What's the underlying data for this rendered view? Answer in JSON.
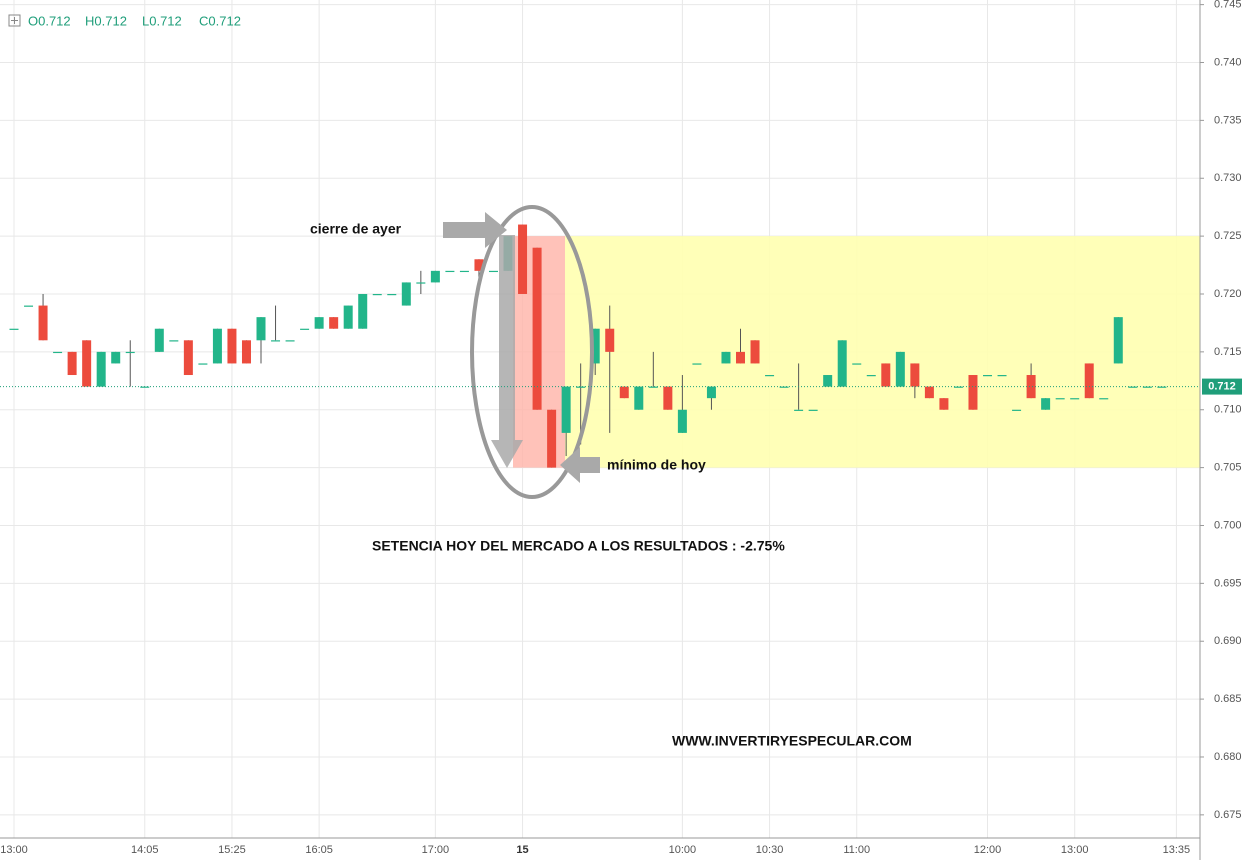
{
  "chart_data": {
    "type": "candlestick",
    "ohlc_header": [
      "O0.712",
      "H0.712",
      "L0.712",
      "C0.712"
    ],
    "categories": [
      "13:00",
      null,
      null,
      null,
      null,
      null,
      null,
      null,
      null,
      "14:05",
      null,
      null,
      null,
      null,
      null,
      "15:25",
      null,
      null,
      null,
      null,
      null,
      "16:05",
      null,
      null,
      null,
      null,
      null,
      null,
      null,
      "17:00",
      null,
      null,
      null,
      null,
      null,
      "15",
      null,
      null,
      null,
      null,
      null,
      null,
      null,
      null,
      null,
      null,
      "10:00",
      null,
      null,
      null,
      null,
      null,
      "10:30",
      null,
      null,
      null,
      null,
      null,
      "11:00",
      null,
      null,
      null,
      null,
      null,
      null,
      null,
      null,
      "12:00",
      null,
      null,
      null,
      null,
      null,
      "13:00",
      null,
      null,
      null,
      null,
      null,
      null,
      "13:35"
    ],
    "open": [
      0.717,
      0.719,
      0.719,
      0.715,
      0.715,
      0.716,
      0.712,
      0.714,
      0.715,
      0.712,
      0.715,
      0.716,
      0.716,
      0.714,
      0.714,
      0.717,
      0.716,
      0.716,
      0.716,
      0.716,
      0.717,
      0.717,
      0.718,
      0.717,
      0.717,
      0.72,
      0.72,
      0.719,
      0.721,
      0.721,
      0.722,
      0.722,
      0.723,
      0.722,
      0.722,
      0.726,
      0.724,
      0.71,
      0.708,
      0.712,
      0.714,
      0.717,
      0.712,
      0.71,
      0.712,
      0.712,
      0.708,
      0.714,
      0.711,
      0.714,
      0.715,
      0.716,
      0.713,
      0.712,
      0.71,
      0.71,
      0.712,
      0.712,
      0.714,
      0.713,
      0.714,
      0.712,
      0.714,
      0.712,
      0.711,
      0.712,
      0.713,
      0.713,
      0.713,
      0.71,
      0.713,
      0.71,
      0.711,
      0.711,
      0.714,
      0.711,
      0.714,
      0.712,
      0.712,
      0.712,
      null
    ],
    "high": [
      0.717,
      0.719,
      0.72,
      0.715,
      0.715,
      0.716,
      0.715,
      0.715,
      0.716,
      0.712,
      0.717,
      0.716,
      0.716,
      0.714,
      0.717,
      0.717,
      0.716,
      0.718,
      0.719,
      0.716,
      0.717,
      0.718,
      0.718,
      0.719,
      0.72,
      0.72,
      0.72,
      0.721,
      0.722,
      0.722,
      0.722,
      0.722,
      0.723,
      0.722,
      0.725,
      0.726,
      0.724,
      0.71,
      0.712,
      0.714,
      0.717,
      0.719,
      0.712,
      0.712,
      0.715,
      0.712,
      0.713,
      0.714,
      0.712,
      0.715,
      0.717,
      0.716,
      0.713,
      0.712,
      0.714,
      0.71,
      0.713,
      0.716,
      0.714,
      0.713,
      0.714,
      0.715,
      0.714,
      0.712,
      0.711,
      0.712,
      0.713,
      0.713,
      0.713,
      0.71,
      0.714,
      0.711,
      0.711,
      0.711,
      0.714,
      0.711,
      0.718,
      0.712,
      0.712,
      0.712,
      null
    ],
    "low": [
      0.717,
      0.719,
      0.716,
      0.715,
      0.713,
      0.712,
      0.712,
      0.714,
      0.712,
      0.712,
      0.715,
      0.716,
      0.713,
      0.714,
      0.714,
      0.714,
      0.714,
      0.714,
      0.716,
      0.716,
      0.717,
      0.717,
      0.717,
      0.717,
      0.717,
      0.72,
      0.72,
      0.719,
      0.72,
      0.721,
      0.722,
      0.722,
      0.721,
      0.722,
      0.722,
      0.72,
      0.71,
      0.705,
      0.706,
      0.707,
      0.713,
      0.708,
      0.711,
      0.71,
      0.712,
      0.71,
      0.708,
      0.714,
      0.71,
      0.714,
      0.714,
      0.714,
      0.713,
      0.712,
      0.71,
      0.71,
      0.712,
      0.712,
      0.714,
      0.713,
      0.712,
      0.712,
      0.711,
      0.711,
      0.71,
      0.712,
      0.71,
      0.713,
      0.713,
      0.71,
      0.711,
      0.71,
      0.711,
      0.711,
      0.711,
      0.711,
      0.714,
      0.712,
      0.712,
      0.712,
      null
    ],
    "close": [
      0.717,
      0.719,
      0.716,
      0.715,
      0.713,
      0.712,
      0.715,
      0.715,
      0.715,
      0.712,
      0.717,
      0.716,
      0.713,
      0.714,
      0.717,
      0.714,
      0.714,
      0.718,
      0.716,
      0.716,
      0.717,
      0.718,
      0.717,
      0.719,
      0.72,
      0.72,
      0.72,
      0.721,
      0.721,
      0.722,
      0.722,
      0.722,
      0.722,
      0.722,
      0.725,
      0.72,
      0.71,
      0.705,
      0.712,
      0.712,
      0.717,
      0.715,
      0.711,
      0.712,
      0.712,
      0.71,
      0.71,
      0.714,
      0.712,
      0.715,
      0.714,
      0.714,
      0.713,
      0.712,
      0.71,
      0.71,
      0.713,
      0.716,
      0.714,
      0.713,
      0.712,
      0.715,
      0.712,
      0.711,
      0.71,
      0.712,
      0.71,
      0.713,
      0.713,
      0.71,
      0.711,
      0.711,
      0.711,
      0.711,
      0.711,
      0.711,
      0.718,
      0.712,
      0.712,
      0.712,
      null
    ],
    "up_color": "#22b58a",
    "down_color": "#ec4b3d",
    "last_price": 0.712,
    "last_price_label": "0.712",
    "band": [
      0.705,
      0.725
    ],
    "ylim": [
      0.673,
      0.7454
    ],
    "yticks": [
      0.675,
      0.68,
      0.685,
      0.69,
      0.695,
      0.7,
      0.705,
      0.71,
      0.715,
      0.72,
      0.725,
      0.73,
      0.735,
      0.74,
      0.745
    ],
    "yticks_labels": [
      "0.675",
      "0.680",
      "0.685",
      "0.690",
      "0.695",
      "0.700",
      "0.705",
      "0.710",
      "0.715",
      "0.720",
      "0.725",
      "0.730",
      "0.735",
      "0.740",
      "0.745"
    ],
    "annotations": [
      "cierre de ayer",
      "mínimo de hoy",
      "SETENCIA HOY DEL MERCADO A LOS RESULTADOS : -2.75%",
      "WWW.INVERTIRYESPECULAR.COM"
    ],
    "grid": true
  }
}
